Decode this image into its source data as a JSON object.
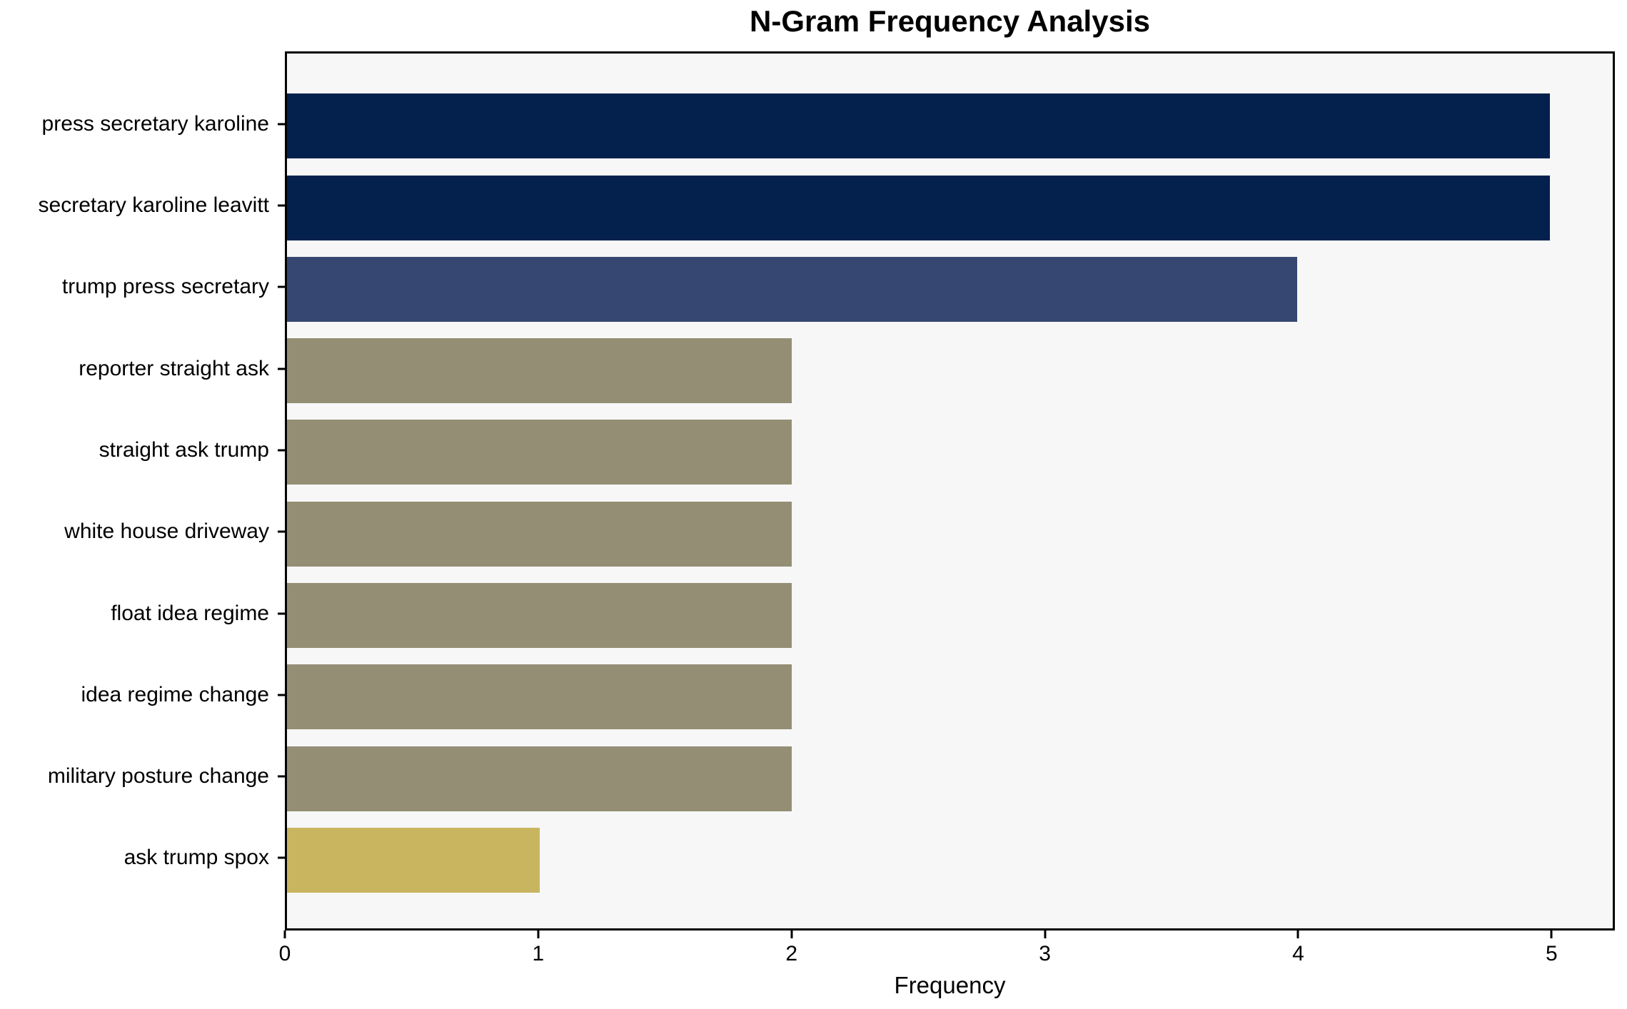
{
  "chart_data": {
    "type": "bar",
    "orientation": "horizontal",
    "title": "N-Gram Frequency Analysis",
    "xlabel": "Frequency",
    "ylabel": "",
    "categories": [
      "press secretary karoline",
      "secretary karoline leavitt",
      "trump press secretary",
      "reporter straight ask",
      "straight ask trump",
      "white house driveway",
      "float idea regime",
      "idea regime change",
      "military posture change",
      "ask trump spox"
    ],
    "values": [
      5,
      5,
      4,
      2,
      2,
      2,
      2,
      2,
      2,
      1
    ],
    "bar_colors": [
      "#03214c",
      "#03214c",
      "#364871",
      "#948e74",
      "#948e74",
      "#948e74",
      "#948e74",
      "#948e74",
      "#948e74",
      "#c9b55f"
    ],
    "xlim": [
      0,
      5.25
    ],
    "x_ticks": [
      "0",
      "1",
      "2",
      "3",
      "4",
      "5"
    ],
    "grid": false,
    "legend": "none",
    "plot_bg": "#f7f7f7",
    "figure_bg": "#ffffff",
    "axis_color": "#000000"
  }
}
